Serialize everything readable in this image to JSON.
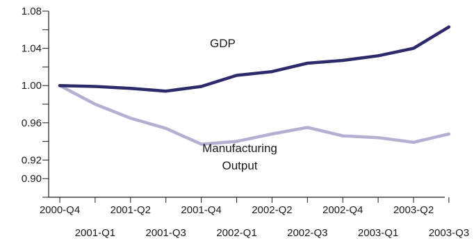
{
  "chart_data": {
    "type": "line",
    "title": "",
    "xlabel": "",
    "ylabel": "",
    "categories": [
      "2000-Q4",
      "2001-Q1",
      "2001-Q2",
      "2001-Q3",
      "2001-Q4",
      "2002-Q1",
      "2002-Q2",
      "2002-Q3",
      "2002-Q4",
      "2003-Q1",
      "2003-Q2",
      "2003-Q3"
    ],
    "y_ticks": [
      "0.90",
      "0.92",
      "0.96",
      "1.00",
      "1.04",
      "1.08"
    ],
    "ylim": [
      0.88,
      1.08
    ],
    "grid": false,
    "legend": "none (series labelled inline)",
    "series": [
      {
        "name": "GDP",
        "color": "#2d2a6b",
        "values": [
          1.0,
          0.999,
          0.997,
          0.994,
          0.999,
          1.011,
          1.015,
          1.024,
          1.027,
          1.032,
          1.04,
          1.063
        ]
      },
      {
        "name": "Manufacturing Output",
        "color": "#b4b0d2",
        "values": [
          1.0,
          0.98,
          0.965,
          0.954,
          0.937,
          0.94,
          0.948,
          0.955,
          0.946,
          0.944,
          0.939,
          0.948
        ]
      }
    ],
    "series_labels": {
      "gdp": "GDP",
      "manufacturing_line1": "Manufacturing",
      "manufacturing_line2": "Output"
    }
  }
}
